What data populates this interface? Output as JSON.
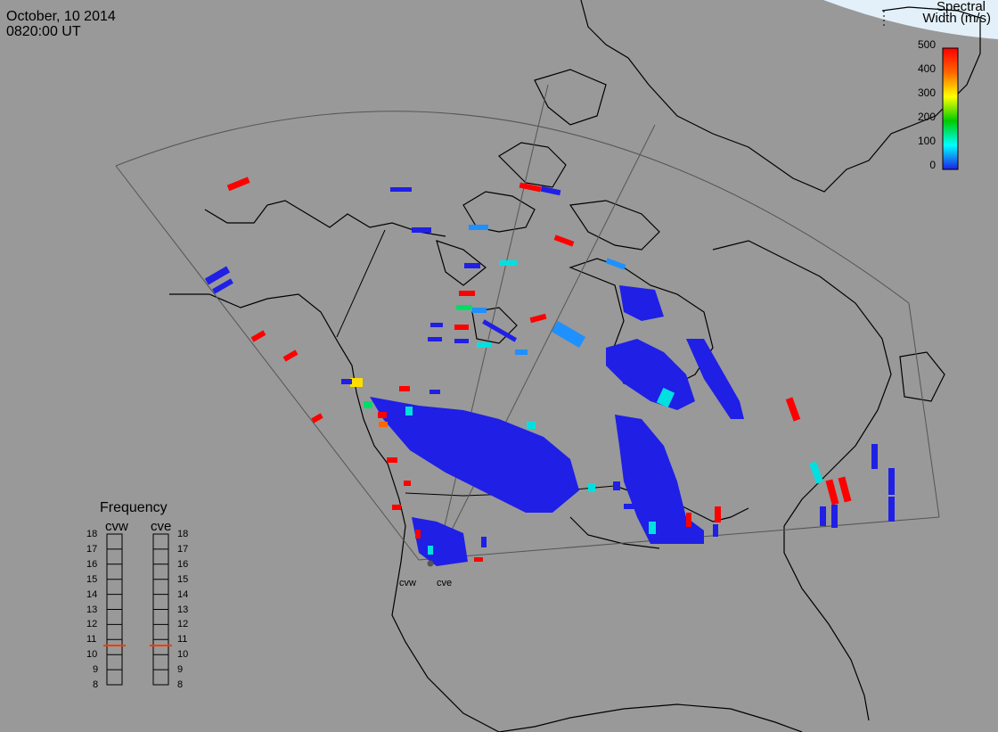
{
  "header": {
    "date": "October, 10 2014",
    "time": "0820:00 UT"
  },
  "colorbar": {
    "title_line1": "Spectral",
    "title_line2": "Width (m/s)",
    "ticks": [
      "500",
      "400",
      "300",
      "200",
      "100",
      "0"
    ],
    "min": 0,
    "max": 500,
    "colors": [
      "#1f1fe6",
      "#00ffff",
      "#00cc00",
      "#ffff00",
      "#ff6600",
      "#ff0000"
    ]
  },
  "frequency_panel": {
    "title": "Frequency",
    "radars": [
      {
        "code": "cvw",
        "current_mhz": 10.6
      },
      {
        "code": "cve",
        "current_mhz": 10.6
      }
    ],
    "scale": [
      "18",
      "17",
      "16",
      "15",
      "14",
      "13",
      "12",
      "11",
      "10",
      "9",
      "8"
    ],
    "marker_color": "#ff3b00"
  },
  "sites": [
    {
      "code": "cvw"
    },
    {
      "code": "cve"
    }
  ],
  "colors": {
    "background": "#999999",
    "coastline": "#000000",
    "fov": "#555555"
  }
}
